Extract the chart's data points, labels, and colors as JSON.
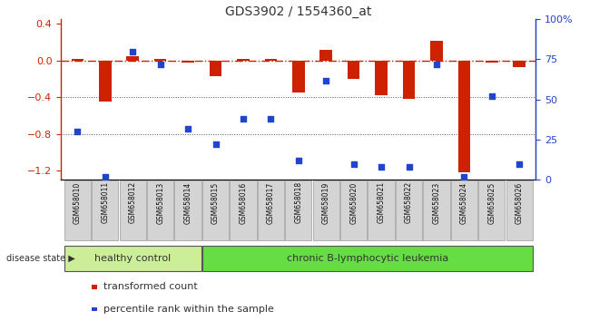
{
  "title": "GDS3902 / 1554360_at",
  "samples": [
    "GSM658010",
    "GSM658011",
    "GSM658012",
    "GSM658013",
    "GSM658014",
    "GSM658015",
    "GSM658016",
    "GSM658017",
    "GSM658018",
    "GSM658019",
    "GSM658020",
    "GSM658021",
    "GSM658022",
    "GSM658023",
    "GSM658024",
    "GSM658025",
    "GSM658026"
  ],
  "red_bars": [
    0.02,
    -0.45,
    0.05,
    0.02,
    -0.02,
    -0.17,
    0.02,
    0.02,
    -0.35,
    0.12,
    -0.2,
    -0.38,
    -0.42,
    0.22,
    -1.22,
    -0.02,
    -0.07
  ],
  "blue_dots_pct": [
    30,
    2,
    80,
    72,
    32,
    22,
    38,
    38,
    12,
    62,
    10,
    8,
    8,
    72,
    2,
    52,
    10
  ],
  "ylim_left": [
    -1.3,
    0.45
  ],
  "ylim_right": [
    0,
    100
  ],
  "yticks_left": [
    -1.2,
    -0.8,
    -0.4,
    0.0,
    0.4
  ],
  "yticks_right": [
    0,
    25,
    50,
    75,
    100
  ],
  "bar_color": "#cc2200",
  "dot_color": "#2244cc",
  "hline_color": "#cc2200",
  "dotted_color": "#555555",
  "group_boundary": 5,
  "group1_label": "healthy control",
  "group2_label": "chronic B-lymphocytic leukemia",
  "group1_color": "#ccee99",
  "group2_color": "#66dd44",
  "disease_state_label": "disease state",
  "legend_bar_label": "transformed count",
  "legend_dot_label": "percentile rank within the sample",
  "bg_color": "#ffffff",
  "plot_bg": "#ffffff",
  "sample_label_bg": "#cccccc",
  "bar_width": 0.45
}
